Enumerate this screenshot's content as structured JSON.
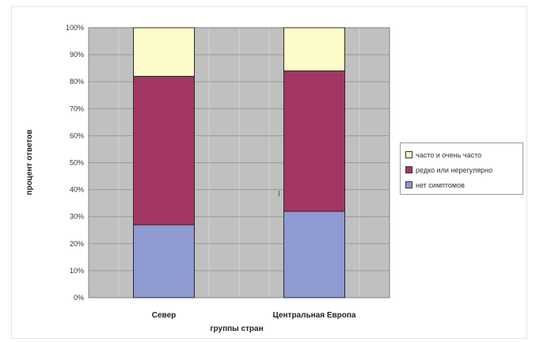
{
  "chart_data": {
    "type": "bar",
    "stacked": true,
    "categories": [
      "Север",
      "Центральная Европа"
    ],
    "series": [
      {
        "name": "нет симптомов",
        "values": [
          27,
          32
        ],
        "color": "#8f9ad1"
      },
      {
        "name": "редко или нерегулярно",
        "values": [
          55,
          52
        ],
        "color": "#a33764"
      },
      {
        "name": "часто и очень часто",
        "values": [
          18,
          16
        ],
        "color": "#fdfbc9"
      }
    ],
    "y_ticks": [
      "0%",
      "10%",
      "20%",
      "30%",
      "40%",
      "50%",
      "60%",
      "70%",
      "80%",
      "90%",
      "100%"
    ],
    "ylim": [
      0,
      100
    ],
    "xlabel": "группы стран",
    "ylabel": "процент ответов",
    "legend_position": "right",
    "grid": true,
    "plot_background": "#c0c0c0"
  },
  "legend": {
    "items": [
      {
        "label": "часто и очень часто",
        "color": "#fdfbc9"
      },
      {
        "label": "редко или нерегулярно",
        "color": "#a33764"
      },
      {
        "label": "нет симптомов",
        "color": "#8f9ad1"
      }
    ]
  },
  "stray_mark": "I"
}
